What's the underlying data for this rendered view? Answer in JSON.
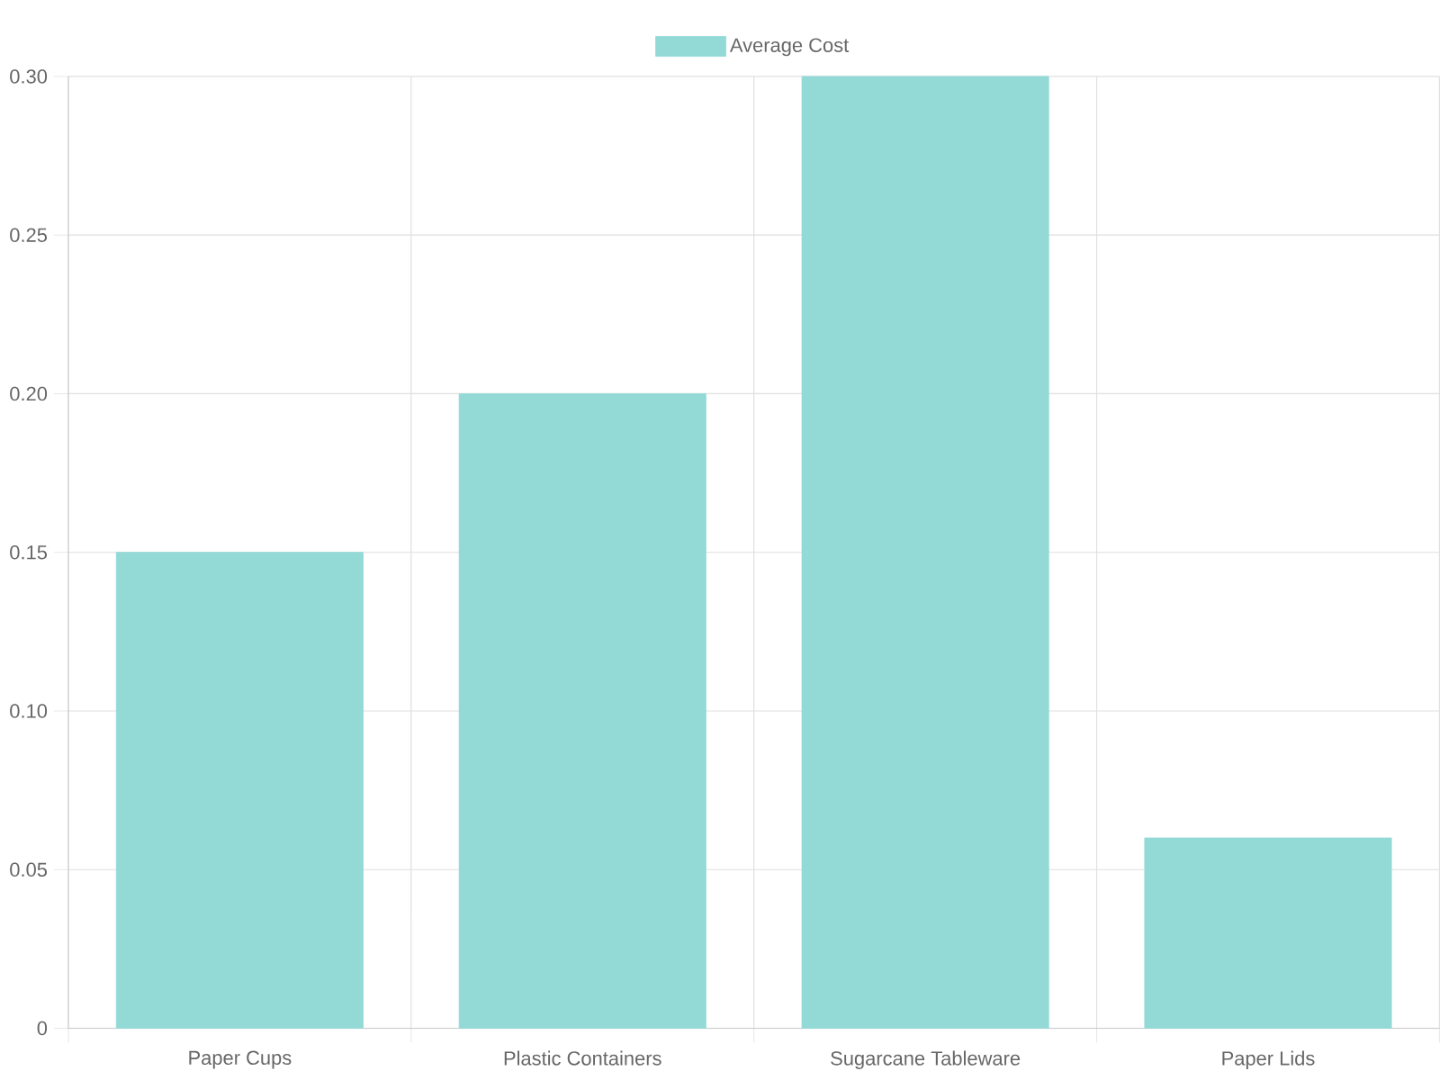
{
  "chart_data": {
    "type": "bar",
    "categories": [
      "Paper Cups",
      "Plastic Containers",
      "Sugarcane Tableware",
      "Paper Lids"
    ],
    "series": [
      {
        "name": "Average Cost",
        "color": "#93d9d6",
        "values": [
          0.15,
          0.2,
          0.3,
          0.06
        ]
      }
    ],
    "ylim": [
      0,
      0.3
    ],
    "yticks": [
      0,
      0.05,
      {
        "value": 0.1,
        "label": "0.10"
      },
      0.15,
      {
        "value": 0.2,
        "label": "0.20"
      },
      0.25,
      {
        "value": 0.3,
        "label": "0.30"
      }
    ],
    "grid": true,
    "legend": "top"
  }
}
